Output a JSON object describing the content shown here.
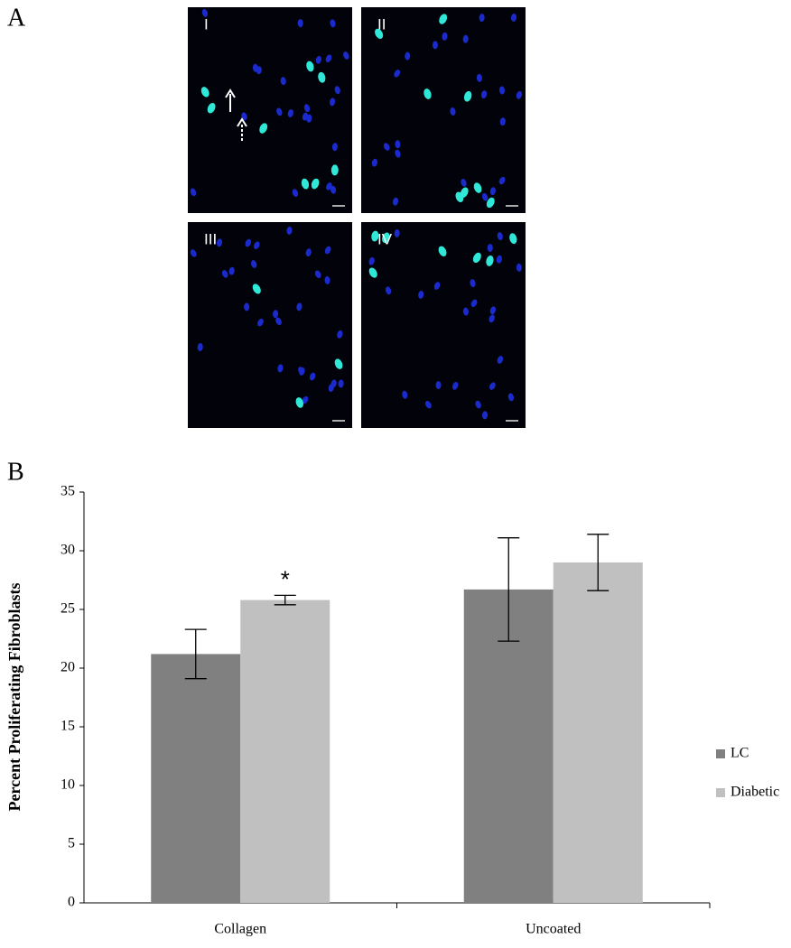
{
  "panel_a": {
    "label": "A",
    "images": [
      {
        "label": "I"
      },
      {
        "label": "II"
      },
      {
        "label": "III"
      },
      {
        "label": "IV"
      }
    ]
  },
  "panel_b": {
    "label": "B"
  },
  "chart_data": {
    "type": "bar",
    "y_label": "Percent Proliferating Fibroblasts",
    "categories": [
      "Collagen",
      "Uncoated"
    ],
    "series": [
      {
        "name": "LC",
        "color": "#808080",
        "values": [
          21.2,
          26.7
        ],
        "errors": [
          2.1,
          4.4
        ]
      },
      {
        "name": "Diabetic",
        "color": "#c0c0c0",
        "values": [
          25.8,
          29.0
        ],
        "errors": [
          0.4,
          2.4
        ]
      }
    ],
    "annotation": "*",
    "ylim": [
      0,
      35
    ],
    "yticks": [
      0,
      5,
      10,
      15,
      20,
      25,
      30,
      35
    ],
    "grid": false,
    "legend": "right"
  }
}
